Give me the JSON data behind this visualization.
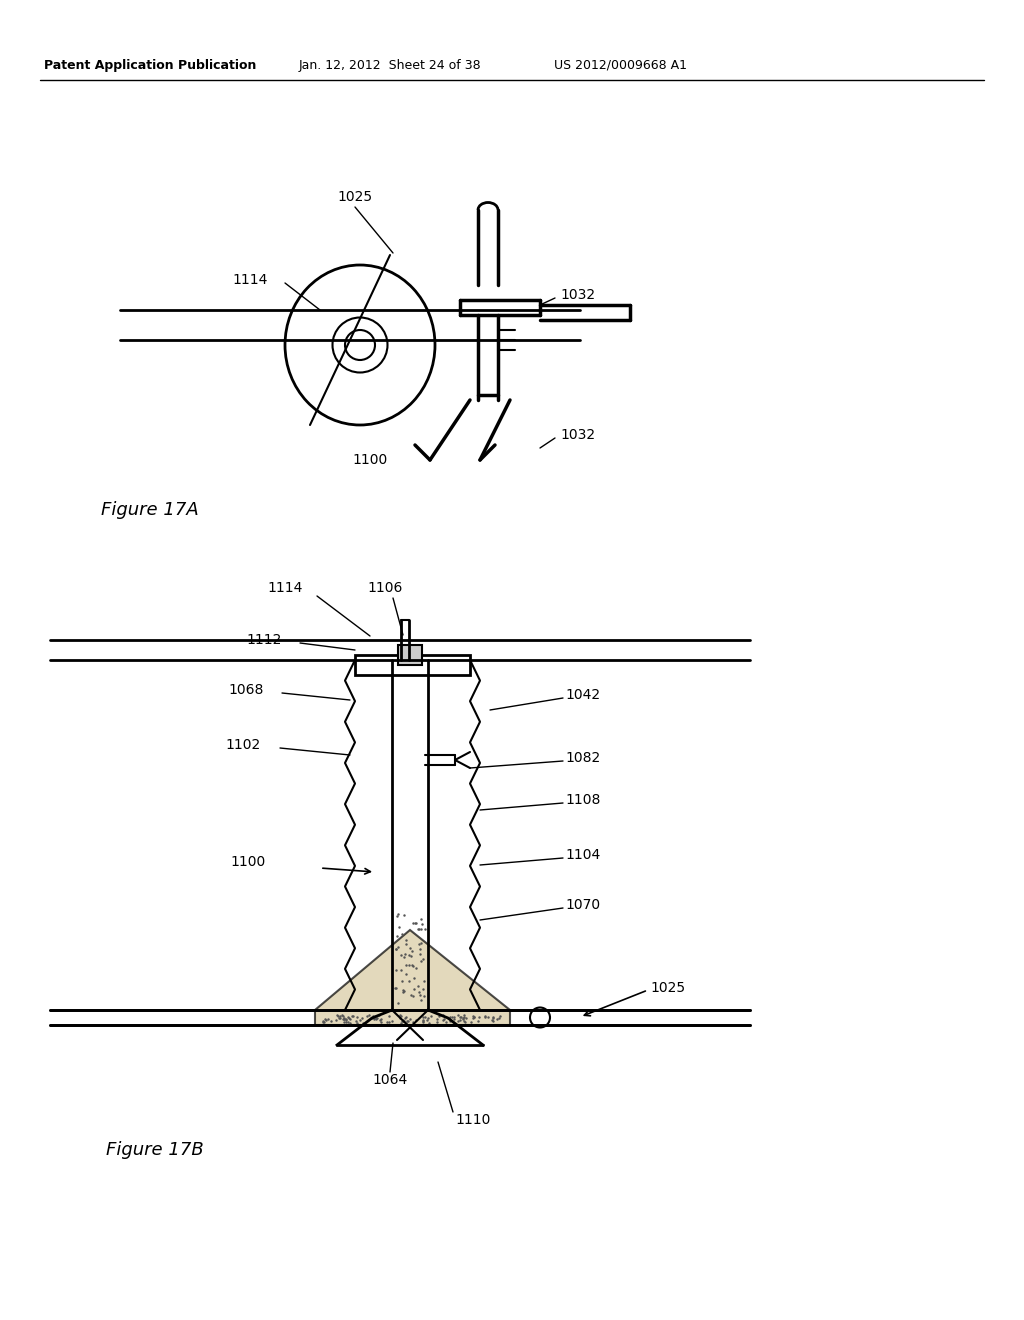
{
  "bg_color": "#ffffff",
  "header_text": "Patent Application Publication",
  "header_date": "Jan. 12, 2012",
  "header_sheet": "Sheet 24 of 38",
  "header_patent": "US 2012/0009668 A1",
  "fig17a_label": "Figure 17A",
  "fig17b_label": "Figure 17B",
  "text_color": "#000000",
  "line_color": "#000000",
  "fig_width": 10.24,
  "fig_height": 13.2
}
